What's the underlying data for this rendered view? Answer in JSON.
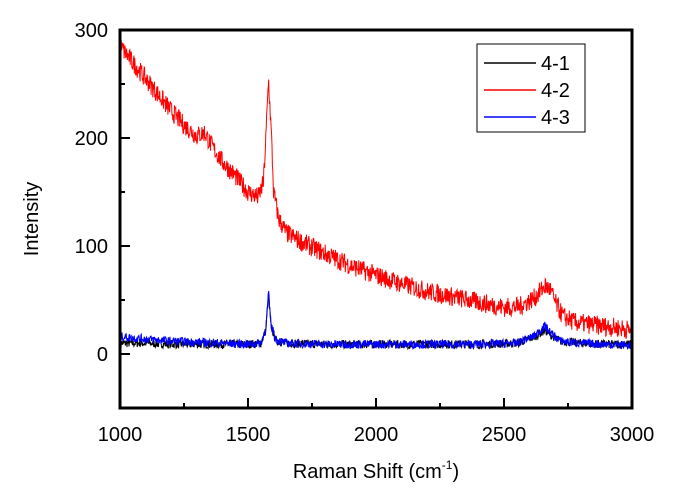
{
  "chart_data": {
    "type": "line",
    "title": "",
    "xlabel": "Raman Shift (cm",
    "xlabel_sup": "-1",
    "xlabel_close": ")",
    "ylabel": "Intensity",
    "xlim": [
      1000,
      3000
    ],
    "ylim": [
      -50,
      300
    ],
    "xticks": [
      1000,
      1500,
      2000,
      2500,
      3000
    ],
    "xtick_labels": [
      "1000",
      "1500",
      "2000",
      "2500",
      "3000"
    ],
    "yticks": [
      0,
      100,
      200,
      300
    ],
    "ytick_labels": [
      "0",
      "100",
      "200",
      "300"
    ],
    "grid": false,
    "legend_position": "top-right",
    "series": [
      {
        "name": "4-1",
        "color": "#000000",
        "x": [
          1000,
          1100,
          1200,
          1300,
          1400,
          1500,
          1550,
          1570,
          1580,
          1590,
          1610,
          1650,
          1800,
          2000,
          2200,
          2400,
          2550,
          2620,
          2660,
          2680,
          2720,
          2800,
          2900,
          3000
        ],
        "y": [
          10,
          10,
          9,
          9,
          9,
          9,
          10,
          22,
          55,
          25,
          12,
          10,
          9,
          9,
          9,
          9,
          10,
          16,
          22,
          18,
          12,
          10,
          9,
          9
        ]
      },
      {
        "name": "4-2",
        "color": "#ff0000",
        "x": [
          1000,
          1050,
          1100,
          1150,
          1200,
          1250,
          1300,
          1330,
          1360,
          1400,
          1450,
          1500,
          1540,
          1560,
          1570,
          1580,
          1590,
          1600,
          1620,
          1650,
          1700,
          1800,
          1900,
          2000,
          2100,
          2200,
          2300,
          2400,
          2500,
          2560,
          2620,
          2660,
          2680,
          2700,
          2730,
          2780,
          2850,
          2950,
          3000
        ],
        "y": [
          285,
          270,
          255,
          240,
          225,
          212,
          202,
          205,
          192,
          178,
          165,
          150,
          145,
          158,
          200,
          255,
          210,
          150,
          125,
          112,
          105,
          93,
          82,
          73,
          65,
          58,
          53,
          48,
          43,
          44,
          52,
          63,
          60,
          48,
          35,
          29,
          27,
          24,
          22
        ]
      },
      {
        "name": "4-3",
        "color": "#0000ff",
        "x": [
          1000,
          1100,
          1200,
          1300,
          1400,
          1500,
          1550,
          1570,
          1580,
          1590,
          1610,
          1650,
          1800,
          2000,
          2200,
          2400,
          2550,
          2620,
          2660,
          2680,
          2720,
          2800,
          2900,
          3000
        ],
        "y": [
          16,
          14,
          12,
          11,
          10,
          9,
          10,
          24,
          57,
          27,
          13,
          10,
          9,
          9,
          9,
          9,
          10,
          17,
          26,
          20,
          12,
          10,
          9,
          8
        ]
      }
    ]
  }
}
